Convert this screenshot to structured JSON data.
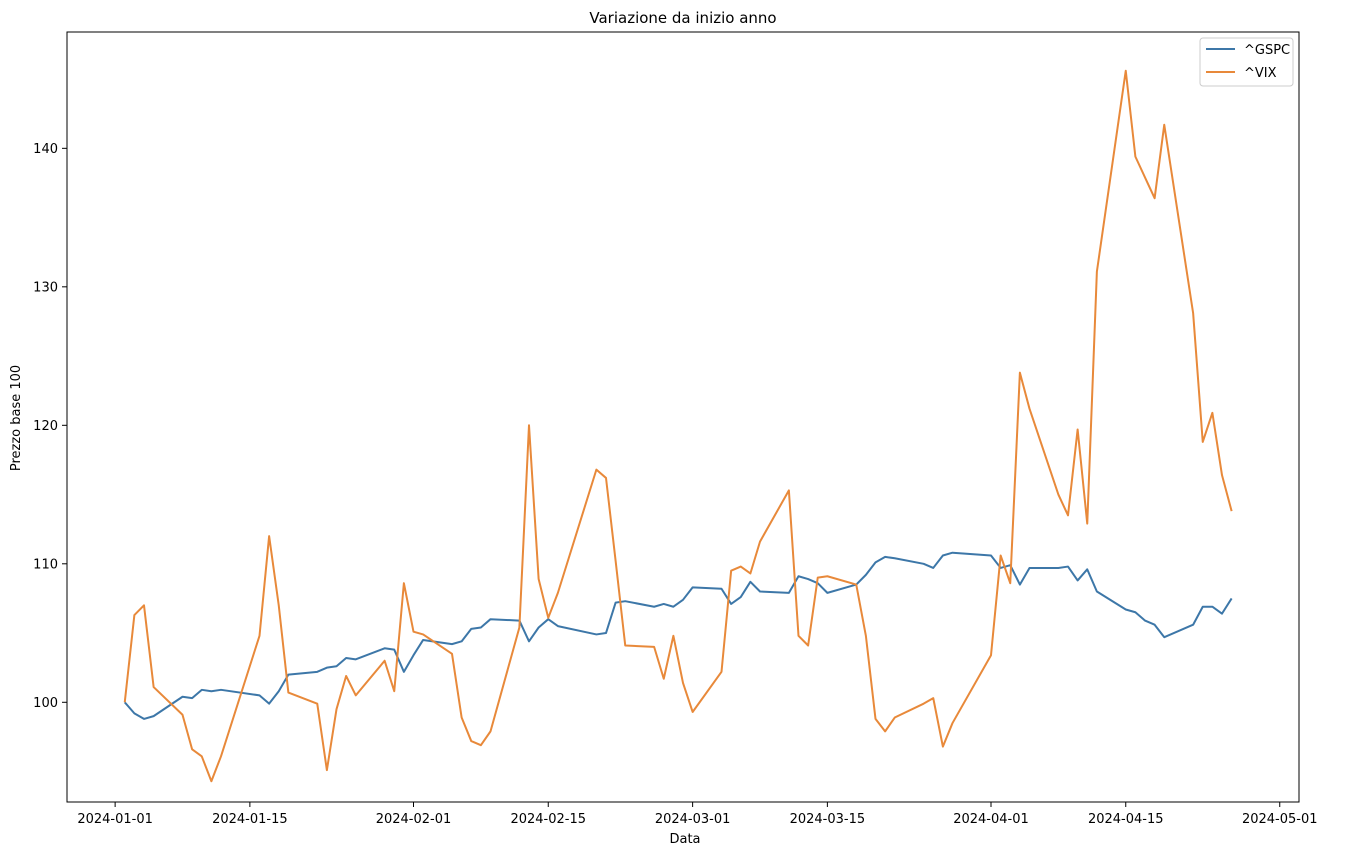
{
  "chart_data": {
    "type": "line",
    "title": "Variazione da inizio anno",
    "xlabel": "Data",
    "ylabel": "Prezzo base 100",
    "xlim": [
      "2023-12-27",
      "2024-05-03"
    ],
    "ylim": [
      92.8,
      148.4
    ],
    "xticks": [
      "2024-01-01",
      "2024-01-15",
      "2024-02-01",
      "2024-02-15",
      "2024-03-01",
      "2024-03-15",
      "2024-04-01",
      "2024-04-15",
      "2024-05-01"
    ],
    "yticks": [
      100,
      110,
      120,
      130,
      140
    ],
    "grid": false,
    "legend_position": "top-right",
    "series": [
      {
        "name": "^GSPC",
        "color": "#3d77a8",
        "points": [
          [
            "2024-01-02",
            100.0
          ],
          [
            "2024-01-03",
            99.2
          ],
          [
            "2024-01-04",
            98.8
          ],
          [
            "2024-01-05",
            99.0
          ],
          [
            "2024-01-08",
            100.4
          ],
          [
            "2024-01-09",
            100.3
          ],
          [
            "2024-01-10",
            100.9
          ],
          [
            "2024-01-11",
            100.8
          ],
          [
            "2024-01-12",
            100.9
          ],
          [
            "2024-01-16",
            100.5
          ],
          [
            "2024-01-17",
            99.9
          ],
          [
            "2024-01-18",
            100.8
          ],
          [
            "2024-01-19",
            102.0
          ],
          [
            "2024-01-22",
            102.2
          ],
          [
            "2024-01-23",
            102.5
          ],
          [
            "2024-01-24",
            102.6
          ],
          [
            "2024-01-25",
            103.2
          ],
          [
            "2024-01-26",
            103.1
          ],
          [
            "2024-01-29",
            103.9
          ],
          [
            "2024-01-30",
            103.8
          ],
          [
            "2024-01-31",
            102.2
          ],
          [
            "2024-02-01",
            103.4
          ],
          [
            "2024-02-02",
            104.5
          ],
          [
            "2024-02-05",
            104.2
          ],
          [
            "2024-02-06",
            104.4
          ],
          [
            "2024-02-07",
            105.3
          ],
          [
            "2024-02-08",
            105.4
          ],
          [
            "2024-02-09",
            106.0
          ],
          [
            "2024-02-12",
            105.9
          ],
          [
            "2024-02-13",
            104.4
          ],
          [
            "2024-02-14",
            105.4
          ],
          [
            "2024-02-15",
            106.0
          ],
          [
            "2024-02-16",
            105.5
          ],
          [
            "2024-02-20",
            104.9
          ],
          [
            "2024-02-21",
            105.0
          ],
          [
            "2024-02-22",
            107.2
          ],
          [
            "2024-02-23",
            107.3
          ],
          [
            "2024-02-26",
            106.9
          ],
          [
            "2024-02-27",
            107.1
          ],
          [
            "2024-02-28",
            106.9
          ],
          [
            "2024-02-29",
            107.4
          ],
          [
            "2024-03-01",
            108.3
          ],
          [
            "2024-03-04",
            108.2
          ],
          [
            "2024-03-05",
            107.1
          ],
          [
            "2024-03-06",
            107.6
          ],
          [
            "2024-03-07",
            108.7
          ],
          [
            "2024-03-08",
            108.0
          ],
          [
            "2024-03-11",
            107.9
          ],
          [
            "2024-03-12",
            109.1
          ],
          [
            "2024-03-13",
            108.9
          ],
          [
            "2024-03-14",
            108.6
          ],
          [
            "2024-03-15",
            107.9
          ],
          [
            "2024-03-18",
            108.5
          ],
          [
            "2024-03-19",
            109.2
          ],
          [
            "2024-03-20",
            110.1
          ],
          [
            "2024-03-21",
            110.5
          ],
          [
            "2024-03-22",
            110.4
          ],
          [
            "2024-03-25",
            110.0
          ],
          [
            "2024-03-26",
            109.7
          ],
          [
            "2024-03-27",
            110.6
          ],
          [
            "2024-03-28",
            110.8
          ],
          [
            "2024-04-01",
            110.6
          ],
          [
            "2024-04-02",
            109.7
          ],
          [
            "2024-04-03",
            109.9
          ],
          [
            "2024-04-04",
            108.5
          ],
          [
            "2024-04-05",
            109.7
          ],
          [
            "2024-04-08",
            109.7
          ],
          [
            "2024-04-09",
            109.8
          ],
          [
            "2024-04-10",
            108.8
          ],
          [
            "2024-04-11",
            109.6
          ],
          [
            "2024-04-12",
            108.0
          ],
          [
            "2024-04-15",
            106.7
          ],
          [
            "2024-04-16",
            106.5
          ],
          [
            "2024-04-17",
            105.9
          ],
          [
            "2024-04-18",
            105.6
          ],
          [
            "2024-04-19",
            104.7
          ],
          [
            "2024-04-22",
            105.6
          ],
          [
            "2024-04-23",
            106.9
          ],
          [
            "2024-04-24",
            106.9
          ],
          [
            "2024-04-25",
            106.4
          ],
          [
            "2024-04-26",
            107.5
          ]
        ]
      },
      {
        "name": "^VIX",
        "color": "#e8893a",
        "points": [
          [
            "2024-01-02",
            100.0
          ],
          [
            "2024-01-03",
            106.3
          ],
          [
            "2024-01-04",
            107.0
          ],
          [
            "2024-01-05",
            101.1
          ],
          [
            "2024-01-08",
            99.1
          ],
          [
            "2024-01-09",
            96.6
          ],
          [
            "2024-01-10",
            96.1
          ],
          [
            "2024-01-11",
            94.3
          ],
          [
            "2024-01-12",
            96.1
          ],
          [
            "2024-01-16",
            104.8
          ],
          [
            "2024-01-17",
            112.0
          ],
          [
            "2024-01-18",
            107.0
          ],
          [
            "2024-01-19",
            100.7
          ],
          [
            "2024-01-22",
            99.9
          ],
          [
            "2024-01-23",
            95.1
          ],
          [
            "2024-01-24",
            99.5
          ],
          [
            "2024-01-25",
            101.9
          ],
          [
            "2024-01-26",
            100.5
          ],
          [
            "2024-01-29",
            103.0
          ],
          [
            "2024-01-30",
            100.8
          ],
          [
            "2024-01-31",
            108.6
          ],
          [
            "2024-02-01",
            105.1
          ],
          [
            "2024-02-02",
            104.9
          ],
          [
            "2024-02-05",
            103.5
          ],
          [
            "2024-02-06",
            98.9
          ],
          [
            "2024-02-07",
            97.2
          ],
          [
            "2024-02-08",
            96.9
          ],
          [
            "2024-02-09",
            97.9
          ],
          [
            "2024-02-12",
            105.4
          ],
          [
            "2024-02-13",
            120.0
          ],
          [
            "2024-02-14",
            108.9
          ],
          [
            "2024-02-15",
            106.1
          ],
          [
            "2024-02-16",
            107.9
          ],
          [
            "2024-02-20",
            116.8
          ],
          [
            "2024-02-21",
            116.2
          ],
          [
            "2024-02-22",
            110.2
          ],
          [
            "2024-02-23",
            104.1
          ],
          [
            "2024-02-26",
            104.0
          ],
          [
            "2024-02-27",
            101.7
          ],
          [
            "2024-02-28",
            104.8
          ],
          [
            "2024-02-29",
            101.4
          ],
          [
            "2024-03-01",
            99.3
          ],
          [
            "2024-03-04",
            102.2
          ],
          [
            "2024-03-05",
            109.5
          ],
          [
            "2024-03-06",
            109.8
          ],
          [
            "2024-03-07",
            109.3
          ],
          [
            "2024-03-08",
            111.6
          ],
          [
            "2024-03-11",
            115.3
          ],
          [
            "2024-03-12",
            104.8
          ],
          [
            "2024-03-13",
            104.1
          ],
          [
            "2024-03-14",
            109.0
          ],
          [
            "2024-03-15",
            109.1
          ],
          [
            "2024-03-18",
            108.5
          ],
          [
            "2024-03-19",
            104.8
          ],
          [
            "2024-03-20",
            98.8
          ],
          [
            "2024-03-21",
            97.9
          ],
          [
            "2024-03-22",
            98.9
          ],
          [
            "2024-03-25",
            99.9
          ],
          [
            "2024-03-26",
            100.3
          ],
          [
            "2024-03-27",
            96.8
          ],
          [
            "2024-03-28",
            98.5
          ],
          [
            "2024-04-01",
            103.4
          ],
          [
            "2024-04-02",
            110.6
          ],
          [
            "2024-04-03",
            108.6
          ],
          [
            "2024-04-04",
            123.8
          ],
          [
            "2024-04-05",
            121.2
          ],
          [
            "2024-04-08",
            115.0
          ],
          [
            "2024-04-09",
            113.5
          ],
          [
            "2024-04-10",
            119.7
          ],
          [
            "2024-04-11",
            112.9
          ],
          [
            "2024-04-12",
            131.1
          ],
          [
            "2024-04-15",
            145.6
          ],
          [
            "2024-04-16",
            139.4
          ],
          [
            "2024-04-17",
            137.9
          ],
          [
            "2024-04-18",
            136.4
          ],
          [
            "2024-04-19",
            141.7
          ],
          [
            "2024-04-22",
            128.1
          ],
          [
            "2024-04-23",
            118.8
          ],
          [
            "2024-04-24",
            120.9
          ],
          [
            "2024-04-25",
            116.4
          ],
          [
            "2024-04-26",
            113.8
          ]
        ]
      }
    ]
  }
}
